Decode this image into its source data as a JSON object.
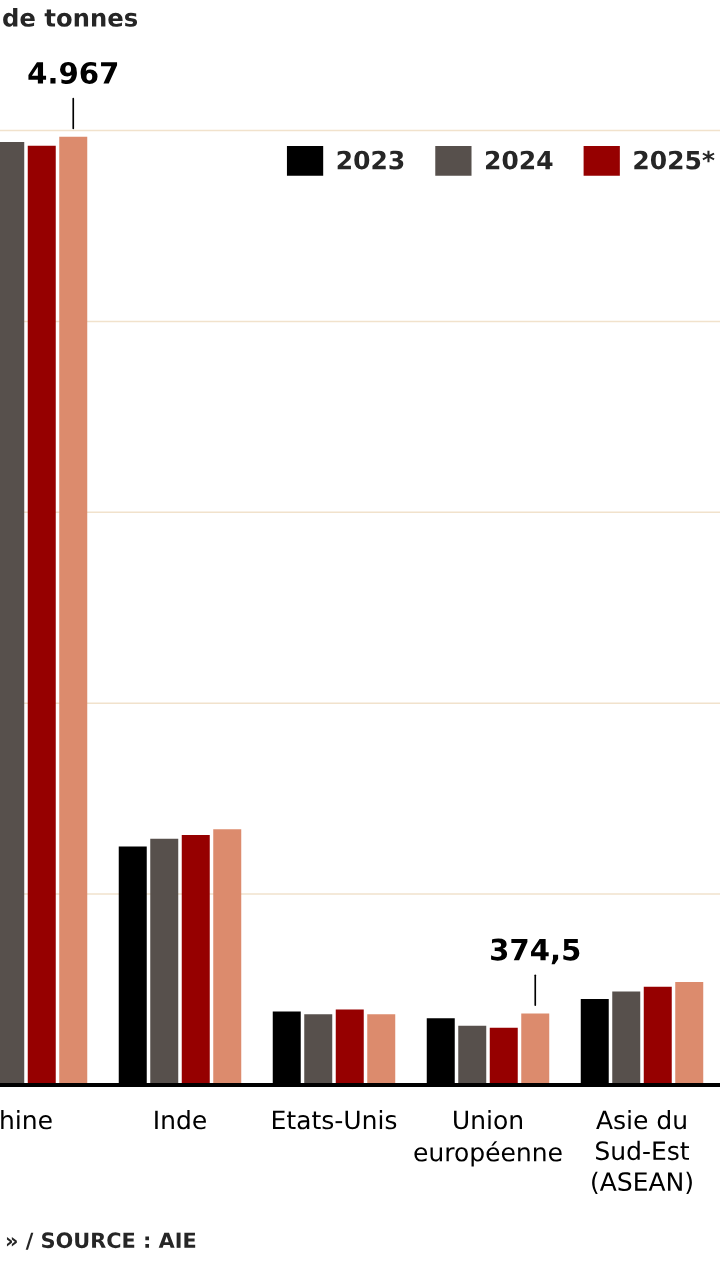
{
  "chart_data": {
    "type": "bar",
    "title": "de tonnes",
    "categories": [
      "hine",
      "Inde",
      "Etats-Unis",
      "Union\neuropéenne",
      "Asie du\nSud-Est\n(ASEAN)"
    ],
    "series": [
      {
        "name": "2023",
        "color": "#000000",
        "values": [
          null,
          1250,
          385,
          350,
          450
        ]
      },
      {
        "name": "2024",
        "color": "#57504c",
        "values": [
          4940,
          1290,
          370,
          310,
          490
        ]
      },
      {
        "name": "2025*",
        "color": "#960000",
        "values": [
          4920,
          1310,
          395,
          300,
          515
        ]
      },
      {
        "color": "#dc8b6d",
        "values": [
          4967,
          1340,
          370,
          374.5,
          540
        ],
        "value_labels": [
          "4.967",
          null,
          null,
          "374,5",
          null
        ]
      }
    ],
    "yticks": [
      {
        "value": 1000,
        "label": null
      },
      {
        "value": 2000,
        "label": null
      },
      {
        "value": 3000,
        "label": null
      },
      {
        "value": 4000,
        "label": null
      },
      {
        "value": 5000,
        "label": null
      }
    ],
    "tick_labels": "x",
    "grid": "y",
    "legend": "top right",
    "annotations": [
      "» / SOURCE : AIE"
    ]
  }
}
